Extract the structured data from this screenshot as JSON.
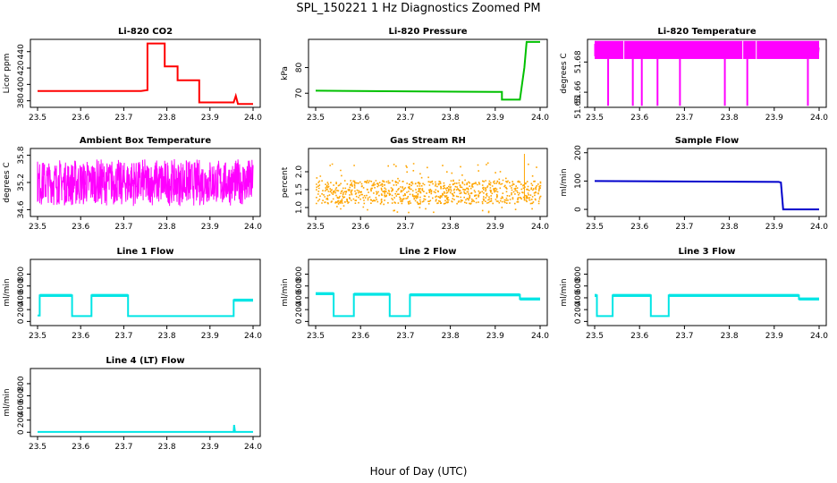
{
  "figure": {
    "title": "SPL_150221  1 Hz Diagnostics Zoomed PM",
    "xlabel": "Hour of Day (UTC)"
  },
  "chart_data": [
    {
      "type": "line",
      "title": "Li-820 CO2",
      "ylabel": "Licor ppm",
      "color": "#ff0000",
      "xlim": [
        23.5,
        24.0
      ],
      "ylim": [
        372,
        455
      ],
      "xticks": [
        "23.5",
        "23.6",
        "23.7",
        "23.8",
        "23.9",
        "24.0"
      ],
      "yticks": [
        "380",
        "400",
        "420",
        "440"
      ],
      "series": [
        {
          "x": [
            23.5,
            23.74,
            23.755,
            23.755,
            23.795,
            23.795,
            23.825,
            23.825,
            23.875,
            23.875,
            23.955,
            23.96,
            23.965,
            23.97,
            24.0
          ],
          "y": [
            392,
            392,
            393,
            450,
            450,
            422,
            422,
            405,
            405,
            378,
            378,
            386,
            376,
            376,
            376
          ]
        }
      ]
    },
    {
      "type": "line",
      "title": "Li-820 Pressure",
      "ylabel": "kPa",
      "color": "#00c000",
      "xlim": [
        23.5,
        24.0
      ],
      "ylim": [
        64.5,
        91
      ],
      "xticks": [
        "23.5",
        "23.6",
        "23.7",
        "23.8",
        "23.9",
        "24.0"
      ],
      "yticks": [
        "70",
        "80"
      ],
      "series": [
        {
          "x": [
            23.5,
            23.9,
            23.915,
            23.915,
            23.955,
            23.965,
            23.97,
            24.0
          ],
          "y": [
            71,
            70.5,
            70.5,
            67.5,
            67.5,
            80,
            90,
            90
          ]
        }
      ]
    },
    {
      "type": "line",
      "title": "Li-820 Temperature",
      "ylabel": "degrees C",
      "color": "#ff00ff",
      "xlim": [
        23.5,
        24.0
      ],
      "ylim": [
        51.65,
        51.695
      ],
      "xticks": [
        "23.5",
        "23.6",
        "23.7",
        "23.8",
        "23.9",
        "24.0"
      ],
      "yticks": [
        "51.65",
        "51.66",
        "51.68"
      ],
      "band": [
        51.682,
        51.694
      ],
      "spikes": [
        23.53,
        23.585,
        23.605,
        23.64,
        23.69,
        23.79,
        23.84,
        23.975
      ],
      "spike_low": 51.651
    },
    {
      "type": "line",
      "title": "Ambient Box Temperature",
      "ylabel": "degrees C",
      "color": "#ff00ff",
      "xlim": [
        23.5,
        24.0
      ],
      "ylim": [
        34.45,
        35.95
      ],
      "xticks": [
        "23.5",
        "23.6",
        "23.7",
        "23.8",
        "23.9",
        "24.0"
      ],
      "yticks": [
        "34.6",
        "35.2",
        "35.8"
      ],
      "band": [
        34.55,
        35.85
      ]
    },
    {
      "type": "scatter",
      "title": "Gas Stream RH",
      "ylabel": "percent",
      "color": "#ffa500",
      "xlim": [
        23.5,
        24.0
      ],
      "ylim": [
        0.75,
        2.65
      ],
      "xticks": [
        "23.5",
        "23.6",
        "23.7",
        "23.8",
        "23.9",
        "24.0"
      ],
      "yticks": [
        "1.0",
        "1.5",
        "2.0"
      ],
      "band": [
        1.1,
        1.75
      ]
    },
    {
      "type": "line",
      "title": "Sample Flow",
      "ylabel": "ml/min",
      "color": "#0000cc",
      "xlim": [
        23.5,
        24.0
      ],
      "ylim": [
        -25,
        215
      ],
      "xticks": [
        "23.5",
        "23.6",
        "23.7",
        "23.8",
        "23.9",
        "24.0"
      ],
      "yticks": [
        "0",
        "100",
        "200"
      ],
      "series": [
        {
          "x": [
            23.5,
            23.91,
            23.915,
            23.92,
            24.0
          ],
          "y": [
            100,
            97,
            95,
            0,
            0
          ]
        }
      ]
    },
    {
      "type": "line",
      "title": "Line 1 Flow",
      "ylabel": "ml/min",
      "color": "#00e5e5",
      "xlim": [
        23.5,
        24.0
      ],
      "ylim": [
        -70,
        1050
      ],
      "xticks": [
        "23.5",
        "23.6",
        "23.7",
        "23.8",
        "23.9",
        "24.0"
      ],
      "yticks": [
        "0",
        "200",
        "400",
        "600",
        "800"
      ],
      "series": [
        {
          "x": [
            23.5,
            23.505,
            23.505,
            23.58,
            23.58,
            23.625,
            23.625,
            23.71,
            23.71,
            23.955,
            23.955,
            24.0
          ],
          "y": [
            100,
            100,
            440,
            440,
            90,
            90,
            440,
            440,
            90,
            90,
            360,
            360
          ]
        }
      ]
    },
    {
      "type": "line",
      "title": "Line 2 Flow",
      "ylabel": "ml/min",
      "color": "#00e5e5",
      "xlim": [
        23.5,
        24.0
      ],
      "ylim": [
        -70,
        1050
      ],
      "xticks": [
        "23.5",
        "23.6",
        "23.7",
        "23.8",
        "23.9",
        "24.0"
      ],
      "yticks": [
        "0",
        "200",
        "400",
        "600",
        "800"
      ],
      "series": [
        {
          "x": [
            23.5,
            23.54,
            23.54,
            23.585,
            23.585,
            23.665,
            23.665,
            23.71,
            23.71,
            23.955,
            23.955,
            24.0
          ],
          "y": [
            470,
            470,
            90,
            90,
            460,
            460,
            90,
            90,
            450,
            450,
            380,
            380
          ]
        }
      ]
    },
    {
      "type": "line",
      "title": "Line 3 Flow",
      "ylabel": "ml/min",
      "color": "#00e5e5",
      "xlim": [
        23.5,
        24.0
      ],
      "ylim": [
        -70,
        1050
      ],
      "xticks": [
        "23.5",
        "23.6",
        "23.7",
        "23.8",
        "23.9",
        "24.0"
      ],
      "yticks": [
        "0",
        "200",
        "400",
        "600",
        "800"
      ],
      "series": [
        {
          "x": [
            23.5,
            23.505,
            23.505,
            23.54,
            23.54,
            23.625,
            23.625,
            23.665,
            23.665,
            23.955,
            23.955,
            24.0
          ],
          "y": [
            440,
            440,
            90,
            90,
            440,
            440,
            90,
            90,
            440,
            440,
            380,
            380
          ]
        }
      ]
    },
    {
      "type": "line",
      "title": "Line 4 (LT) Flow",
      "ylabel": "ml/min",
      "color": "#00e5e5",
      "xlim": [
        23.5,
        24.0
      ],
      "ylim": [
        -70,
        1050
      ],
      "xticks": [
        "23.5",
        "23.6",
        "23.7",
        "23.8",
        "23.9",
        "24.0"
      ],
      "yticks": [
        "0",
        "200",
        "400",
        "600",
        "800"
      ],
      "series": [
        {
          "x": [
            23.5,
            23.955,
            23.956,
            23.958,
            23.96,
            24.0
          ],
          "y": [
            5,
            5,
            120,
            5,
            5,
            5
          ]
        }
      ]
    }
  ]
}
